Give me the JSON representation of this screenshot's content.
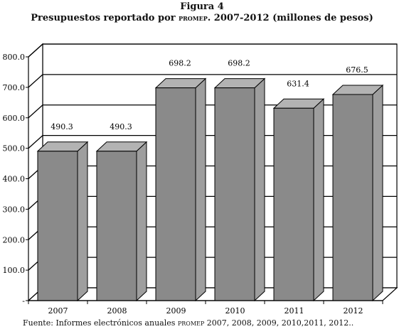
{
  "figure": {
    "label": "Figura 4",
    "title_main": "Presupuestos reportado por ",
    "title_sc": "promep",
    "title_rest": ". 2007-2012 (millones de pesos)",
    "source_main": "Fuente: Informes electrónicos anuales ",
    "source_sc": "promep",
    "source_rest": " 2007, 2008, 2009, 2010,2011, 2012.."
  },
  "colors": {
    "bar_front": "#8a8a8a",
    "bar_side": "#9e9e9e",
    "bar_top": "#b3b3b3",
    "wall": "#ffffff",
    "line": "#000000"
  },
  "chart_data": {
    "type": "bar",
    "categories": [
      "2007",
      "2008",
      "2009",
      "2010",
      "2011",
      "2012"
    ],
    "values": [
      490.3,
      490.3,
      698.2,
      698.2,
      631.4,
      676.5
    ],
    "data_labels": [
      "490.3",
      "490.3",
      "698.2",
      "698.2",
      "631.4",
      "676.5"
    ],
    "yticks": [
      "-",
      "100.0",
      "200.0",
      "300.0",
      "400.0",
      "500.0",
      "600.0",
      "700.0",
      "800.0"
    ],
    "ylim": [
      0,
      800
    ],
    "grid": true,
    "style": "3d-bar",
    "xlabel": "",
    "ylabel": ""
  }
}
